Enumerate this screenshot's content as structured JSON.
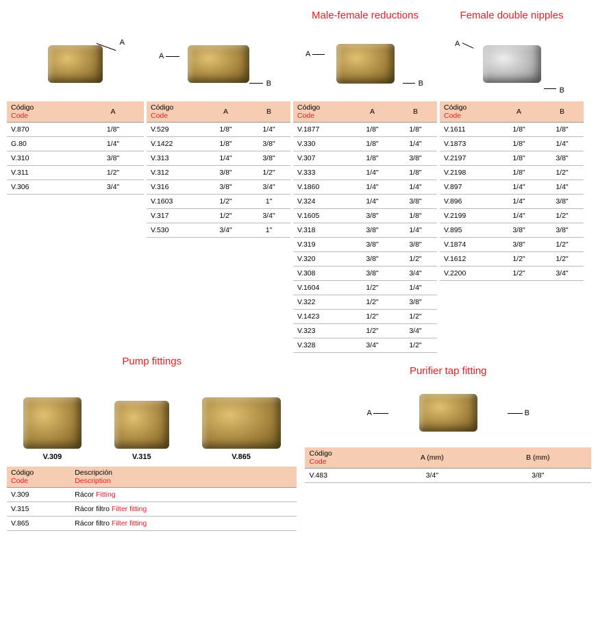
{
  "headers": {
    "codigo_es": "Código",
    "codigo_en": "Code",
    "descripcion_es": "Descripción",
    "descripcion_en": "Description",
    "A": "A",
    "B": "B",
    "Amm": "A (mm)",
    "Bmm": "B (mm)"
  },
  "section1": {
    "title": "",
    "rows": [
      {
        "code": "V.870",
        "a": "1/8\""
      },
      {
        "code": "G.80",
        "a": "1/4\""
      },
      {
        "code": "V.310",
        "a": "3/8\""
      },
      {
        "code": "V.311",
        "a": "1/2\""
      },
      {
        "code": "V.306",
        "a": "3/4\""
      }
    ]
  },
  "section2": {
    "title": "",
    "rows": [
      {
        "code": "V.529",
        "a": "1/8\"",
        "b": "1/4\""
      },
      {
        "code": "V.1422",
        "a": "1/8\"",
        "b": "3/8\""
      },
      {
        "code": "V.313",
        "a": "1/4\"",
        "b": "3/8\""
      },
      {
        "code": "V.312",
        "a": "3/8\"",
        "b": "1/2\""
      },
      {
        "code": "V.316",
        "a": "3/8\"",
        "b": "3/4\""
      },
      {
        "code": "V.1603",
        "a": "1/2\"",
        "b": "1\""
      },
      {
        "code": "V.317",
        "a": "1/2\"",
        "b": "3/4\""
      },
      {
        "code": "V.530",
        "a": "3/4\"",
        "b": "1\""
      }
    ]
  },
  "section3": {
    "title": "Male-female reductions",
    "rows": [
      {
        "code": "V.1877",
        "a": "1/8\"",
        "b": "1/8\""
      },
      {
        "code": "V.330",
        "a": "1/8\"",
        "b": "1/4\""
      },
      {
        "code": "V.307",
        "a": "1/8\"",
        "b": "3/8\""
      },
      {
        "code": "V.333",
        "a": "1/4\"",
        "b": "1/8\""
      },
      {
        "code": "V.1860",
        "a": "1/4\"",
        "b": "1/4\""
      },
      {
        "code": "V.324",
        "a": "1/4\"",
        "b": "3/8\""
      },
      {
        "code": "V.1605",
        "a": "3/8\"",
        "b": "1/8\""
      },
      {
        "code": "V.318",
        "a": "3/8\"",
        "b": "1/4\""
      },
      {
        "code": "V.319",
        "a": "3/8\"",
        "b": "3/8\""
      },
      {
        "code": "V.320",
        "a": "3/8\"",
        "b": "1/2\""
      },
      {
        "code": "V.308",
        "a": "3/8\"",
        "b": "3/4\""
      },
      {
        "code": "V.1604",
        "a": "1/2\"",
        "b": "1/4\""
      },
      {
        "code": "V.322",
        "a": "1/2\"",
        "b": "3/8\""
      },
      {
        "code": "V.1423",
        "a": "1/2\"",
        "b": "1/2\""
      },
      {
        "code": "V.323",
        "a": "1/2\"",
        "b": "3/4\""
      },
      {
        "code": "V.328",
        "a": "3/4\"",
        "b": "1/2\""
      }
    ]
  },
  "section4": {
    "title": "Female double nipples",
    "rows": [
      {
        "code": "V.1611",
        "a": "1/8\"",
        "b": "1/8\""
      },
      {
        "code": "V.1873",
        "a": "1/8\"",
        "b": "1/4\""
      },
      {
        "code": "V.2197",
        "a": "1/8\"",
        "b": "3/8\""
      },
      {
        "code": "V.2198",
        "a": "1/8\"",
        "b": "1/2\""
      },
      {
        "code": "V.897",
        "a": "1/4\"",
        "b": "1/4\""
      },
      {
        "code": "V.896",
        "a": "1/4\"",
        "b": "3/8\""
      },
      {
        "code": "V.2199",
        "a": "1/4\"",
        "b": "1/2\""
      },
      {
        "code": "V.895",
        "a": "3/8\"",
        "b": "3/8\""
      },
      {
        "code": "V.1874",
        "a": "3/8\"",
        "b": "1/2\""
      },
      {
        "code": "V.1612",
        "a": "1/2\"",
        "b": "1/2\""
      },
      {
        "code": "V.2200",
        "a": "1/2\"",
        "b": "3/4\""
      }
    ]
  },
  "pump": {
    "title": "Pump fittings",
    "items": [
      "V.309",
      "V.315",
      "V.865"
    ],
    "rows": [
      {
        "code": "V.309",
        "es": "Rácor",
        "en": "Fitting"
      },
      {
        "code": "V.315",
        "es": "Rácor filtro",
        "en": "Filter fitting"
      },
      {
        "code": "V.865",
        "es": "Rácor filtro",
        "en": "Filter fitting"
      }
    ]
  },
  "purifier": {
    "title": "Purifier tap fitting",
    "rows": [
      {
        "code": "V.483",
        "a": "3/4\"",
        "b": "3/8\""
      }
    ]
  },
  "letters": {
    "A": "A",
    "B": "B"
  }
}
